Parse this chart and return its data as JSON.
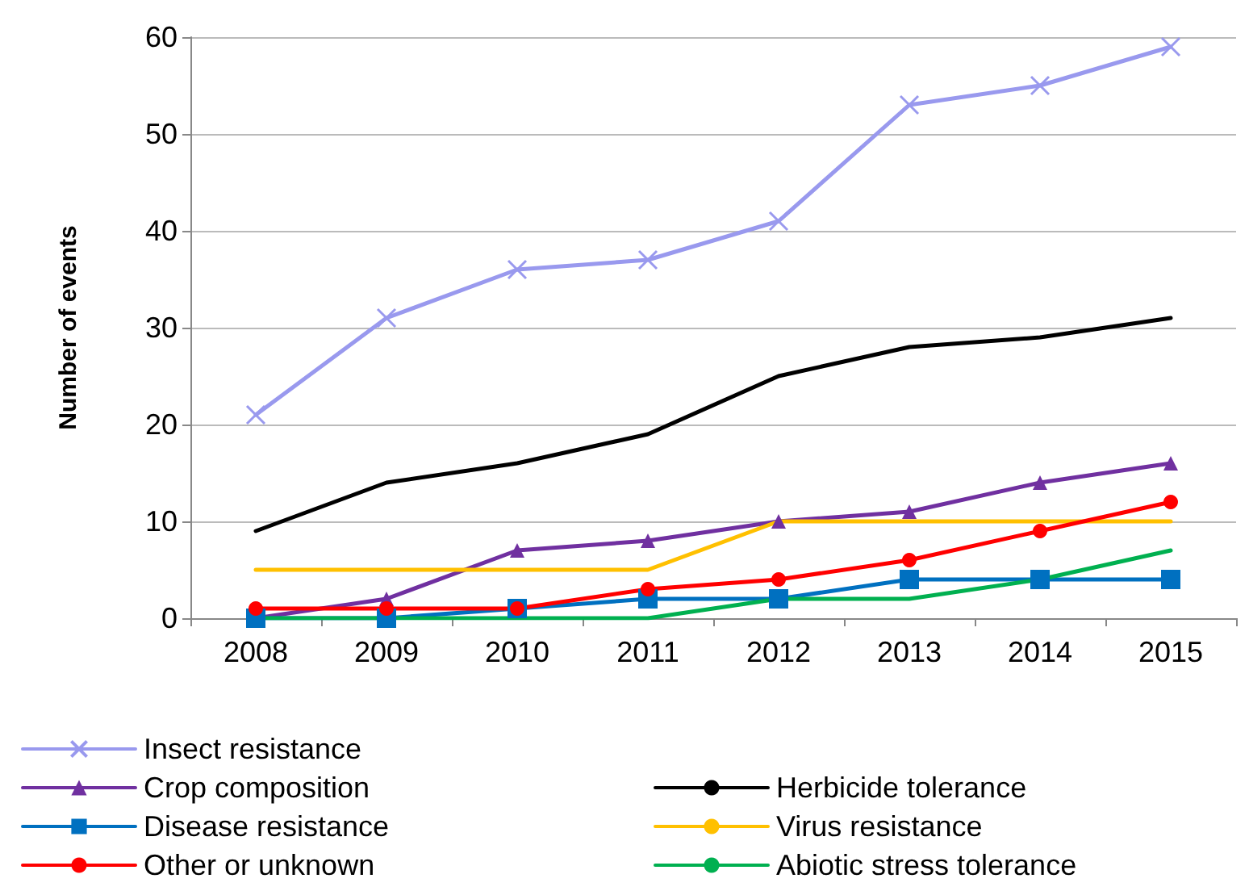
{
  "chart_data": {
    "type": "line",
    "ylabel": "Number of events",
    "categories": [
      "2008",
      "2009",
      "2010",
      "2011",
      "2012",
      "2013",
      "2014",
      "2015"
    ],
    "ylim": [
      0,
      60
    ],
    "yticks": [
      0,
      10,
      20,
      30,
      40,
      50,
      60
    ],
    "grid": "y",
    "legend": "bottom",
    "line_style": "solid",
    "series": [
      {
        "name": "Insect resistance",
        "color": "#9999ee",
        "marker": "cross",
        "values": [
          21,
          31,
          36,
          37,
          41,
          53,
          55,
          59
        ]
      },
      {
        "name": "Herbicide tolerance",
        "color": "#000000",
        "marker": "none",
        "values": [
          9,
          14,
          16,
          19,
          25,
          28,
          29,
          31
        ]
      },
      {
        "name": "Crop composition",
        "color": "#7030a0",
        "marker": "triangle",
        "values": [
          0,
          2,
          7,
          8,
          10,
          11,
          14,
          16
        ]
      },
      {
        "name": "Virus resistance",
        "color": "#ffc000",
        "marker": "none",
        "values": [
          5,
          5,
          5,
          5,
          10,
          10,
          10,
          10
        ]
      },
      {
        "name": "Disease resistance",
        "color": "#0070c0",
        "marker": "square",
        "values": [
          0,
          0,
          1,
          2,
          2,
          4,
          4,
          4
        ]
      },
      {
        "name": "Abiotic stress tolerance",
        "color": "#00b050",
        "marker": "none",
        "values": [
          0,
          0,
          0,
          0,
          2,
          2,
          4,
          7
        ]
      },
      {
        "name": "Other or unknown",
        "color": "#ff0000",
        "marker": "circle",
        "values": [
          1,
          1,
          1,
          3,
          4,
          6,
          9,
          12
        ]
      }
    ]
  }
}
